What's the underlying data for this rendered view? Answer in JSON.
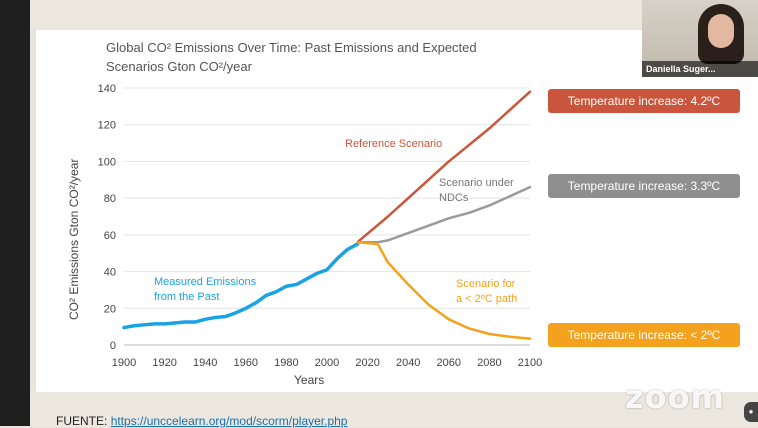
{
  "chart_data": {
    "type": "line",
    "title_lines": [
      "Global CO² Emissions Over Time: Past Emissions and Expected",
      "Scenarios Gton CO²/year"
    ],
    "xlabel": "Years",
    "ylabel": "CO² Emissions  Gton CO²/year",
    "xlim": [
      1900,
      2100
    ],
    "ylim": [
      0,
      140
    ],
    "xticks": [
      1900,
      1920,
      1940,
      1960,
      1980,
      2000,
      2020,
      2040,
      2060,
      2080,
      2100
    ],
    "yticks": [
      0,
      20,
      40,
      60,
      80,
      100,
      120,
      140
    ],
    "grid": "horizontal",
    "series": [
      {
        "name": "Measured Emissions from the Past",
        "color": "#1aa3e3",
        "x": [
          1900,
          1905,
          1910,
          1915,
          1920,
          1925,
          1930,
          1935,
          1940,
          1945,
          1950,
          1955,
          1960,
          1965,
          1970,
          1975,
          1980,
          1985,
          1990,
          1995,
          2000,
          2005,
          2010,
          2015
        ],
        "y": [
          9.5,
          10.5,
          11,
          11.5,
          11.5,
          12,
          12.5,
          12.5,
          14,
          15,
          15.5,
          17.5,
          20,
          23,
          27,
          29,
          32,
          33,
          36,
          39,
          41,
          47,
          52,
          55
        ]
      },
      {
        "name": "Reference Scenario",
        "color": "#c9563c",
        "x": [
          2015,
          2030,
          2040,
          2050,
          2060,
          2070,
          2080,
          2090,
          2100
        ],
        "y": [
          56,
          70,
          80,
          90,
          100,
          109,
          118,
          128,
          138
        ]
      },
      {
        "name": "Scenario under NDCs",
        "color": "#9a9a9a",
        "x": [
          2015,
          2025,
          2030,
          2040,
          2050,
          2060,
          2070,
          2080,
          2090,
          2100
        ],
        "y": [
          56,
          56,
          57,
          61,
          65,
          69,
          72,
          76,
          81,
          86
        ]
      },
      {
        "name": "Scenario for a < 2ºC path",
        "color": "#f4a11d",
        "x": [
          2015,
          2025,
          2030,
          2040,
          2050,
          2060,
          2070,
          2080,
          2090,
          2100
        ],
        "y": [
          56,
          55,
          45,
          33,
          22,
          14,
          9,
          6,
          4.5,
          3.5
        ]
      }
    ],
    "annotations": {
      "measured_line1": "Measured Emissions",
      "measured_line2": "from the Past",
      "reference": "Reference Scenario",
      "ndc_line1": "Scenario under",
      "ndc_line2": "NDCs",
      "path_line1": "Scenario for",
      "path_line2": "a < 2ºC path"
    }
  },
  "badges": [
    {
      "label": "Temperature increase: 4.2ºC",
      "color": "#c9563c"
    },
    {
      "label": "Temperature increase: 3.3ºC",
      "color": "#8f8f8f"
    },
    {
      "label": "Temperature increase: < 2ºC",
      "color": "#f4a11d"
    }
  ],
  "video": {
    "participant_name": "Daniella Suger..."
  },
  "zoom_logo": "zoom",
  "source": {
    "label": "FUENTE:",
    "url": "https://unccelearn.org/mod/scorm/player.php"
  }
}
